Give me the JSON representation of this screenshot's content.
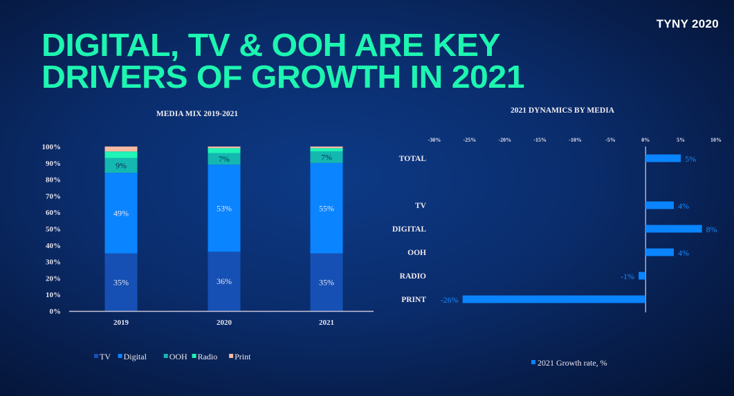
{
  "brand": "TYNY 2020",
  "headline": {
    "line1": "DIGITAL, TV & OOH ARE KEY",
    "line2": "DRIVERS OF GROWTH IN 2021"
  },
  "chart_data": [
    {
      "type": "bar",
      "stacked": true,
      "title": "MEDIA MIX 2019-2021",
      "categories": [
        "2019",
        "2020",
        "2021"
      ],
      "series": [
        {
          "name": "TV",
          "color": "#1650b4",
          "values": [
            35,
            36,
            35
          ],
          "labels": [
            "35%",
            "36%",
            "35%"
          ]
        },
        {
          "name": "Digital",
          "color": "#0a84ff",
          "values": [
            49,
            53,
            55
          ],
          "labels": [
            "49%",
            "53%",
            "55%"
          ]
        },
        {
          "name": "OOH",
          "color": "#14b8b0",
          "values": [
            9,
            7,
            7
          ],
          "labels": [
            "9%",
            "7%",
            "7%"
          ]
        },
        {
          "name": "Radio",
          "color": "#1ff5b6",
          "values": [
            4,
            3,
            2
          ],
          "labels": [
            "",
            "",
            ""
          ]
        },
        {
          "name": "Print",
          "color": "#f7b9a0",
          "values": [
            3,
            1,
            1
          ],
          "labels": [
            "",
            "",
            ""
          ]
        }
      ],
      "ylim": [
        0,
        100
      ],
      "yticks": [
        "0%",
        "10%",
        "20%",
        "30%",
        "40%",
        "50%",
        "60%",
        "70%",
        "80%",
        "90%",
        "100%"
      ],
      "xlabel": "",
      "ylabel": "",
      "grid": false,
      "legend": "bottom"
    },
    {
      "type": "bar",
      "orientation": "horizontal",
      "title": "2021 DYNAMICS BY MEDIA",
      "categories": [
        "TOTAL",
        "TV",
        "DIGITAL",
        "OOH",
        "RADIO",
        "PRINT"
      ],
      "series": [
        {
          "name": "2021 Growth rate, %",
          "color": "#0a84ff",
          "values": [
            5,
            4,
            8,
            4,
            -1,
            -26
          ],
          "labels": [
            "5%",
            "4%",
            "8%",
            "4%",
            "-1%",
            "-26%"
          ]
        }
      ],
      "xlim": [
        -30,
        10
      ],
      "xticks": [
        "-30%",
        "-25%",
        "-20%",
        "-15%",
        "-10%",
        "-5%",
        "0%",
        "5%",
        "10%"
      ],
      "xtick_values": [
        -30,
        -25,
        -20,
        -15,
        -10,
        -5,
        0,
        5,
        10
      ],
      "grid": false,
      "legend": "bottom"
    }
  ]
}
